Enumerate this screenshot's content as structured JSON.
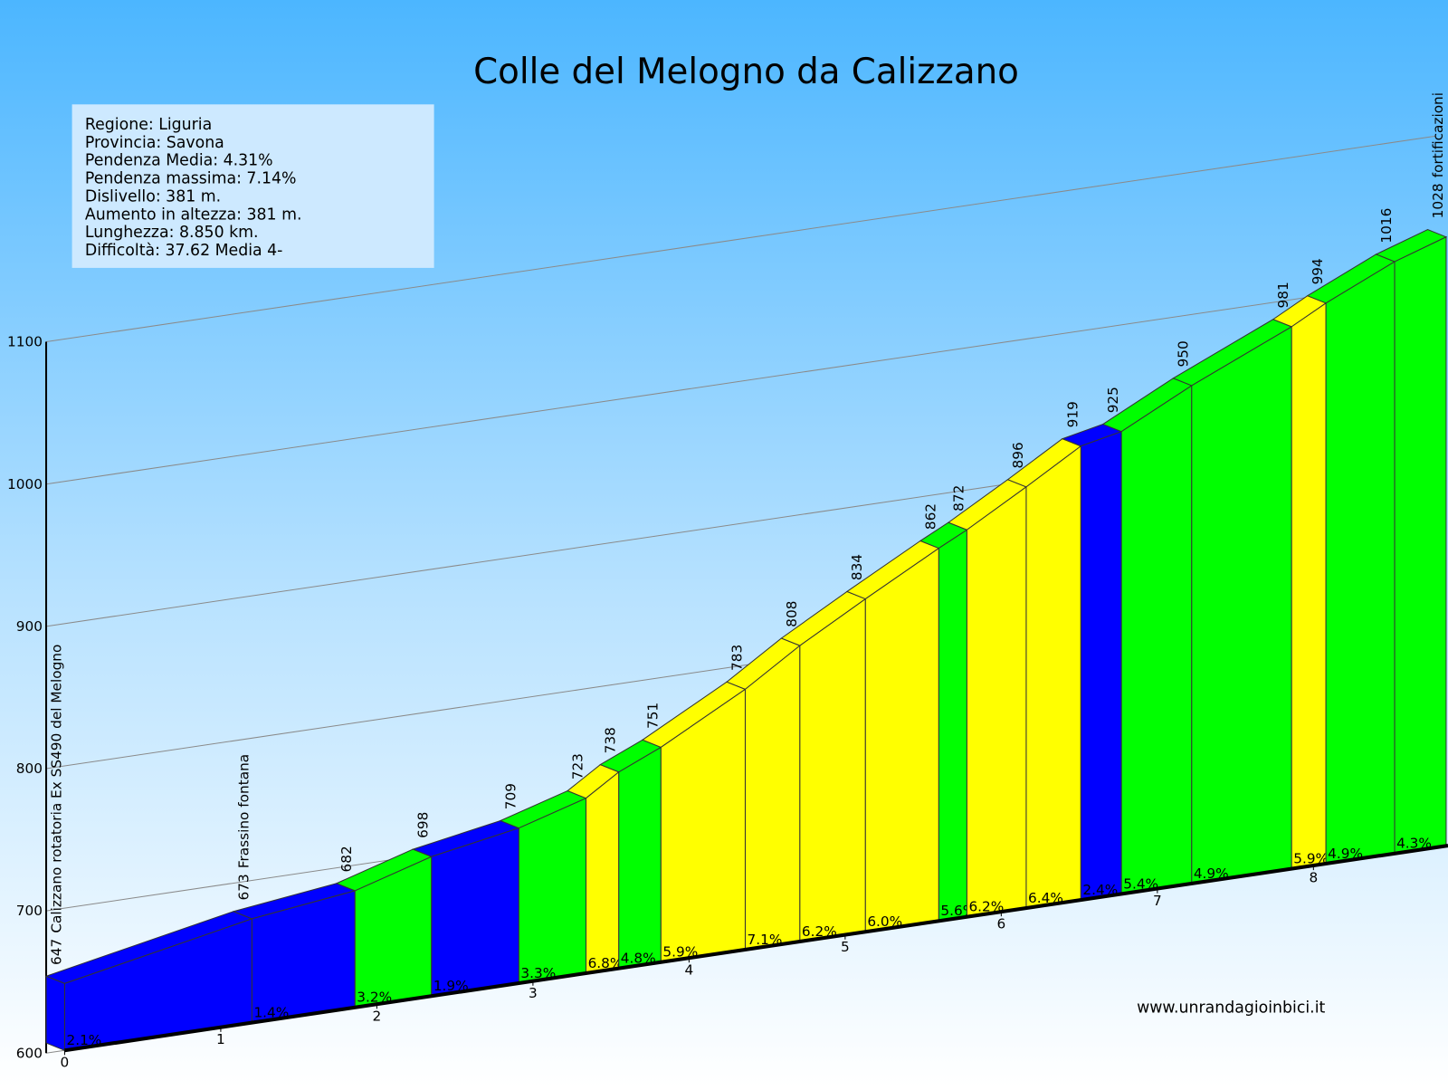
{
  "chart_data": {
    "type": "elevation-profile",
    "title": "Colle del Melogno da Calizzano",
    "info": [
      "Regione: Liguria",
      "Provincia: Savona",
      "Pendenza Media: 4.31%",
      "Pendenza massima: 7.14%",
      "Dislivello: 381 m.",
      "Aumento in altezza: 381 m.",
      "Lunghezza: 8.850 km.",
      "Difficoltà: 37.62 Media 4-"
    ],
    "source": "www.unrandagioinbici.it",
    "x": [
      0,
      1.2,
      1.86,
      2.35,
      2.91,
      3.34,
      3.55,
      3.82,
      4.36,
      4.71,
      5.13,
      5.6,
      5.78,
      6.16,
      6.51,
      6.77,
      7.22,
      7.86,
      8.08,
      8.52,
      8.85
    ],
    "elevations": [
      647,
      673,
      682,
      698,
      709,
      723,
      738,
      751,
      783,
      808,
      834,
      862,
      872,
      896,
      919,
      925,
      950,
      981,
      994,
      1016,
      1028
    ],
    "annotations": [
      {
        "x": 0,
        "text": "Calizzano rotatoria Ex SS490 del Melogno"
      },
      {
        "x": 1.2,
        "text": "Frassino fontana"
      },
      {
        "x": 8.85,
        "text": "fortificazioni"
      }
    ],
    "segments": {
      "values": [
        2.1,
        1.4,
        3.2,
        1.9,
        3.3,
        6.8,
        4.8,
        5.9,
        7.1,
        6.2,
        6.0,
        5.6,
        6.2,
        6.4,
        2.4,
        5.4,
        4.9,
        5.9,
        4.9,
        4.3
      ],
      "value_labels": [
        "2.1%",
        "1.4%",
        "3.2%",
        "1.9%",
        "3.3%",
        "6.8%",
        "4.8%",
        "5.9%",
        "7.1%",
        "6.2%",
        "6.0%",
        "5.6%",
        "6.2%",
        "6.4%",
        "2.4%",
        "5.4%",
        "4.9%",
        "5.9%",
        "4.9%",
        "4.3%"
      ],
      "colors": [
        "#0000ff",
        "#0000ff",
        "#00ff00",
        "#0000ff",
        "#00ff00",
        "#ffff00",
        "#00ff00",
        "#ffff00",
        "#ffff00",
        "#ffff00",
        "#ffff00",
        "#00ff00",
        "#ffff00",
        "#ffff00",
        "#0000ff",
        "#00ff00",
        "#00ff00",
        "#ffff00",
        "#00ff00",
        "#00ff00"
      ]
    },
    "xlim": [
      0,
      8.85
    ],
    "xticks": [
      0,
      1,
      2,
      3,
      4,
      5,
      6,
      7,
      8
    ],
    "ylim": [
      600,
      1100
    ],
    "yticks": [
      600,
      700,
      800,
      900,
      1000,
      1100
    ],
    "grid": true
  }
}
